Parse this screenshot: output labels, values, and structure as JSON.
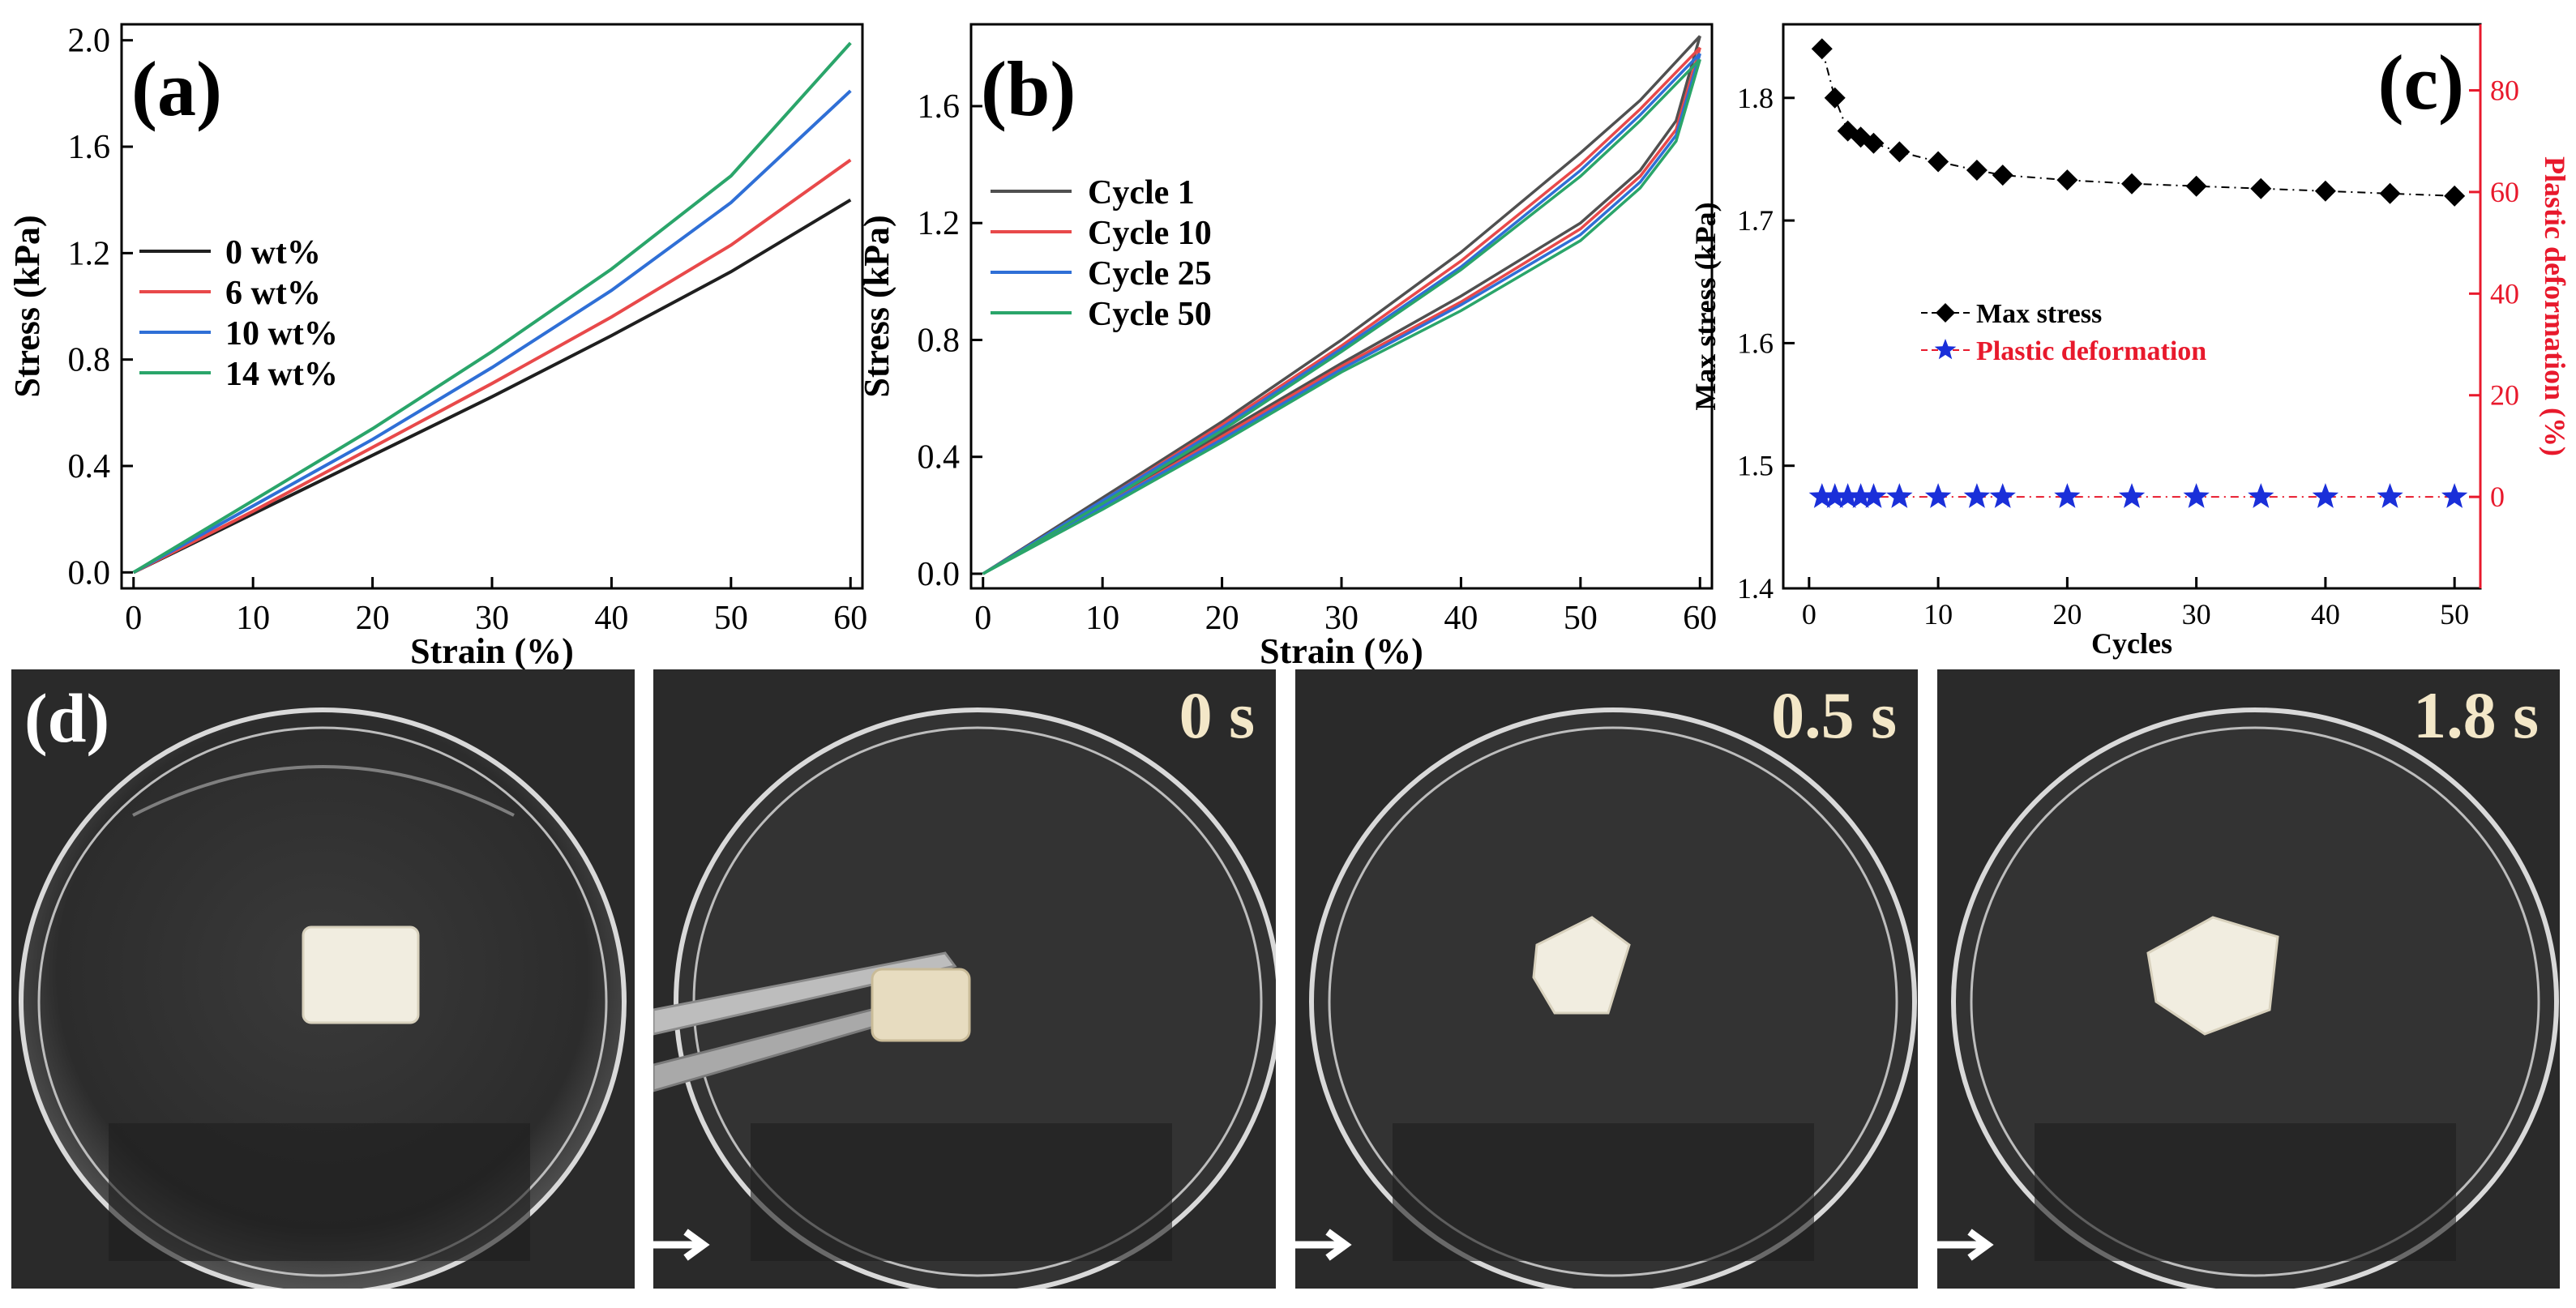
{
  "chart_data": [
    {
      "type": "line",
      "panel_label": "(a)",
      "xlabel": "Strain (%)",
      "ylabel": "Stress (kPa)",
      "xlim": [
        -1,
        61
      ],
      "ylim": [
        -0.06,
        2.06
      ],
      "xticks": [
        "0",
        "10",
        "20",
        "30",
        "40",
        "50",
        "60"
      ],
      "yticks": [
        "0.0",
        "0.4",
        "0.8",
        "1.2",
        "1.6",
        "2.0"
      ],
      "legend_position": "middle-left",
      "series": [
        {
          "name": "0 wt%",
          "color": "#1f1f1f",
          "x": [
            0,
            10,
            20,
            30,
            40,
            50,
            60
          ],
          "y": [
            0,
            0.22,
            0.44,
            0.66,
            0.89,
            1.13,
            1.4
          ]
        },
        {
          "name": "6 wt%",
          "color": "#e8494a",
          "x": [
            0,
            10,
            20,
            30,
            40,
            50,
            60
          ],
          "y": [
            0,
            0.23,
            0.47,
            0.71,
            0.96,
            1.23,
            1.55
          ]
        },
        {
          "name": "10 wt%",
          "color": "#2f6fd6",
          "x": [
            0,
            10,
            20,
            30,
            40,
            50,
            60
          ],
          "y": [
            0,
            0.25,
            0.5,
            0.77,
            1.06,
            1.39,
            1.81
          ]
        },
        {
          "name": "14 wt%",
          "color": "#2aa56a",
          "x": [
            0,
            10,
            20,
            30,
            40,
            50,
            60
          ],
          "y": [
            0,
            0.27,
            0.54,
            0.83,
            1.14,
            1.49,
            1.99
          ]
        }
      ]
    },
    {
      "type": "line",
      "panel_label": "(b)",
      "xlabel": "Strain (%)",
      "ylabel": "Stress (kPa)",
      "xlim": [
        -1,
        61
      ],
      "ylim": [
        -0.05,
        1.88
      ],
      "xticks": [
        "0",
        "10",
        "20",
        "30",
        "40",
        "50",
        "60"
      ],
      "yticks": [
        "0.0",
        "0.4",
        "0.8",
        "1.2",
        "1.6"
      ],
      "legend_position": "upper-left",
      "series": [
        {
          "name": "Cycle 1",
          "color": "#505050",
          "x_load": [
            0,
            10,
            20,
            30,
            40,
            50,
            55,
            60
          ],
          "y_load": [
            0,
            0.26,
            0.52,
            0.8,
            1.1,
            1.44,
            1.62,
            1.84
          ],
          "x_unload": [
            60,
            58,
            55,
            50,
            40,
            30,
            20,
            10,
            0
          ],
          "y_unload": [
            1.84,
            1.55,
            1.38,
            1.2,
            0.95,
            0.72,
            0.48,
            0.24,
            0
          ]
        },
        {
          "name": "Cycle 10",
          "color": "#e8494a",
          "x_load": [
            0,
            10,
            20,
            30,
            40,
            50,
            55,
            60
          ],
          "y_load": [
            0,
            0.25,
            0.51,
            0.78,
            1.07,
            1.4,
            1.59,
            1.8
          ],
          "x_unload": [
            60,
            58,
            55,
            50,
            40,
            30,
            20,
            10,
            0
          ],
          "y_unload": [
            1.8,
            1.52,
            1.36,
            1.18,
            0.93,
            0.71,
            0.47,
            0.23,
            0
          ]
        },
        {
          "name": "Cycle 25",
          "color": "#2f6fd6",
          "x_load": [
            0,
            10,
            20,
            30,
            40,
            50,
            55,
            60
          ],
          "y_load": [
            0,
            0.25,
            0.5,
            0.77,
            1.05,
            1.38,
            1.57,
            1.78
          ],
          "x_unload": [
            60,
            58,
            55,
            50,
            40,
            30,
            20,
            10,
            0
          ],
          "y_unload": [
            1.78,
            1.5,
            1.34,
            1.16,
            0.92,
            0.7,
            0.46,
            0.23,
            0
          ]
        },
        {
          "name": "Cycle 50",
          "color": "#2aa56a",
          "x_load": [
            0,
            10,
            20,
            30,
            40,
            50,
            55,
            60
          ],
          "y_load": [
            0,
            0.24,
            0.49,
            0.76,
            1.04,
            1.36,
            1.55,
            1.76
          ],
          "x_unload": [
            60,
            58,
            55,
            50,
            40,
            30,
            20,
            10,
            0
          ],
          "y_unload": [
            1.76,
            1.48,
            1.32,
            1.14,
            0.9,
            0.69,
            0.45,
            0.22,
            0
          ]
        }
      ]
    },
    {
      "type": "scatter",
      "panel_label": "(c)",
      "xlabel": "Cycles",
      "ylabel_left": "Max stress (kPa)",
      "ylabel_right": "Plastic deformation (%)",
      "xlim": [
        -2,
        52
      ],
      "ylim_left": [
        1.4,
        1.86
      ],
      "ylim_right": [
        -18,
        93
      ],
      "xticks": [
        "0",
        "10",
        "20",
        "30",
        "40",
        "50"
      ],
      "yticks_left": [
        "1.4",
        "1.5",
        "1.6",
        "1.7",
        "1.8"
      ],
      "yticks_right": [
        "0",
        "20",
        "40",
        "60",
        "80"
      ],
      "legend_position": "middle-center",
      "series": [
        {
          "name": "Max stress",
          "axis": "left",
          "marker": "diamond",
          "color": "#000000",
          "x": [
            1,
            2,
            3,
            4,
            5,
            7,
            10,
            13,
            15,
            20,
            25,
            30,
            35,
            40,
            45,
            50
          ],
          "y": [
            1.84,
            1.8,
            1.773,
            1.768,
            1.763,
            1.756,
            1.748,
            1.741,
            1.737,
            1.733,
            1.73,
            1.728,
            1.726,
            1.724,
            1.722,
            1.72
          ]
        },
        {
          "name": "Plastic deformation",
          "axis": "right",
          "marker": "star",
          "color": "#1a2fd9",
          "x": [
            1,
            2,
            3,
            4,
            5,
            7,
            10,
            13,
            15,
            20,
            25,
            30,
            35,
            40,
            45,
            50
          ],
          "y": [
            0,
            0,
            0,
            0,
            0,
            0,
            0,
            0,
            0,
            0,
            0,
            0,
            0,
            0,
            0,
            0
          ]
        }
      ]
    }
  ],
  "photos": {
    "panel_label": "(d)",
    "frames": [
      {
        "time_label": ""
      },
      {
        "time_label": "0 s"
      },
      {
        "time_label": "0.5 s"
      },
      {
        "time_label": "1.8 s"
      }
    ]
  },
  "colors": {
    "legend_red_text": "#e8192c",
    "right_axis": "#e8192c",
    "photo_background": "#2a2a2a",
    "arrow": "#ffffff"
  }
}
